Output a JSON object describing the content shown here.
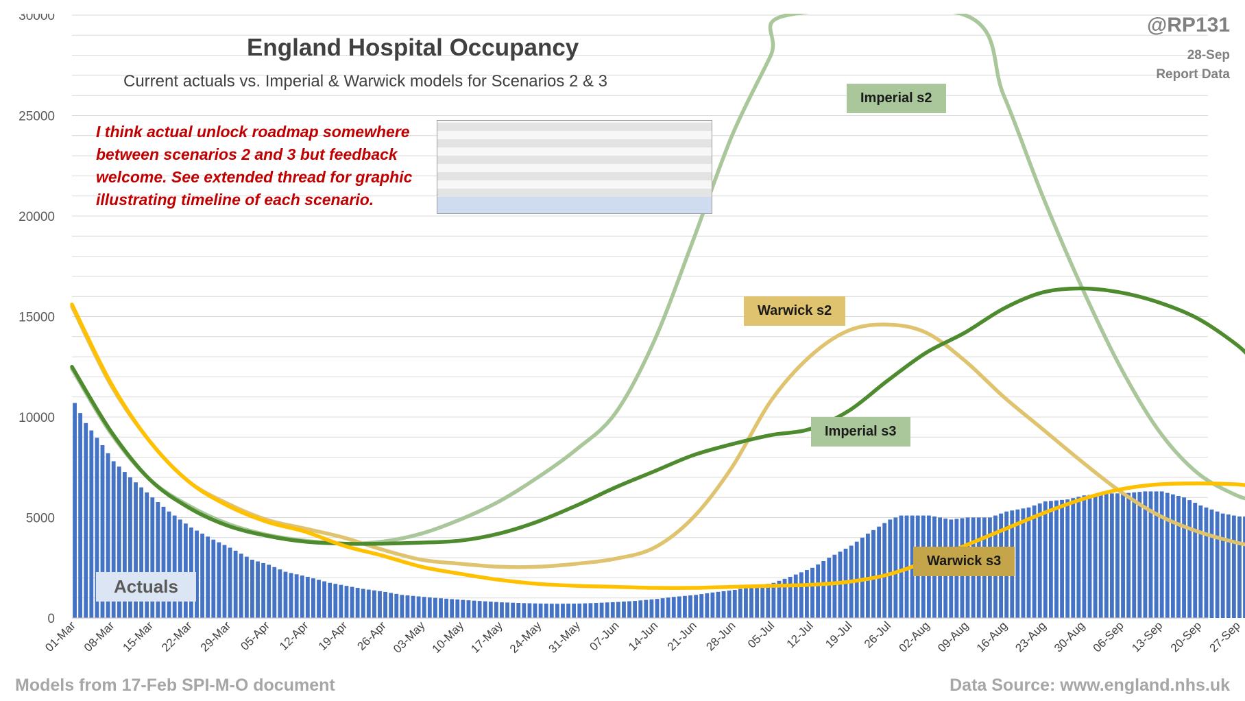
{
  "header": {
    "title": "England Hospital Occupancy",
    "subtitle": "Current actuals vs. Imperial & Warwick models for Scenarios 2 & 3",
    "handle": "@RP131",
    "report_date": "28-Sep",
    "report_data": "Report Data"
  },
  "annotation": "I think actual unlock roadmap somewhere between scenarios 2 and 3 but feedback welcome. See extended thread for graphic illustrating timeline of each scenario.",
  "footer": {
    "left": "Models from 17-Feb SPI-M-O document",
    "right": "Data Source: www.england.nhs.uk"
  },
  "colors": {
    "actuals": "#4472c4",
    "imperial_s2": "#a9c79a",
    "imperial_s3": "#4e8a2e",
    "warwick_s2": "#dfc36f",
    "warwick_s3": "#ffc000",
    "grid": "#d9d9d9"
  },
  "labels": {
    "imperial_s2": "Imperial s2",
    "imperial_s3": "Imperial s3",
    "warwick_s2": "Warwick s2",
    "warwick_s3": "Warwick s3",
    "actuals": "Actuals"
  },
  "chart_data": {
    "type": "bar+line",
    "title": "England Hospital Occupancy",
    "subtitle": "Current actuals vs. Imperial & Warwick models for Scenarios 2 & 3",
    "ylim": [
      0,
      30000
    ],
    "y_ticks": [
      0,
      5000,
      10000,
      15000,
      20000,
      25000,
      30000
    ],
    "x_start": "01-Mar",
    "x_ticks": [
      "01-Mar",
      "08-Mar",
      "15-Mar",
      "22-Mar",
      "29-Mar",
      "05-Apr",
      "12-Apr",
      "19-Apr",
      "26-Apr",
      "03-May",
      "10-May",
      "17-May",
      "24-May",
      "31-May",
      "07-Jun",
      "14-Jun",
      "21-Jun",
      "28-Jun",
      "05-Jul",
      "12-Jul",
      "19-Jul",
      "26-Jul",
      "02-Aug",
      "09-Aug",
      "16-Aug",
      "23-Aug",
      "30-Aug",
      "06-Sep",
      "13-Sep",
      "20-Sep",
      "27-Sep"
    ],
    "grid": true,
    "bars": {
      "name": "Actuals",
      "anchors": [
        [
          "01-Mar",
          10700
        ],
        [
          "03-Mar",
          9700
        ],
        [
          "06-Mar",
          8600
        ],
        [
          "08-Mar",
          7800
        ],
        [
          "11-Mar",
          7000
        ],
        [
          "15-Mar",
          6000
        ],
        [
          "18-Mar",
          5300
        ],
        [
          "22-Mar",
          4500
        ],
        [
          "26-Mar",
          3900
        ],
        [
          "29-Mar",
          3500
        ],
        [
          "02-Apr",
          2900
        ],
        [
          "05-Apr",
          2650
        ],
        [
          "08-Apr",
          2300
        ],
        [
          "12-Apr",
          2050
        ],
        [
          "16-Apr",
          1750
        ],
        [
          "19-Apr",
          1600
        ],
        [
          "22-Apr",
          1450
        ],
        [
          "26-Apr",
          1300
        ],
        [
          "29-Apr",
          1150
        ],
        [
          "03-May",
          1050
        ],
        [
          "06-May",
          980
        ],
        [
          "10-May",
          900
        ],
        [
          "14-May",
          830
        ],
        [
          "17-May",
          780
        ],
        [
          "21-May",
          740
        ],
        [
          "24-May",
          720
        ],
        [
          "27-May",
          710
        ],
        [
          "31-May",
          720
        ],
        [
          "03-Jun",
          750
        ],
        [
          "07-Jun",
          800
        ],
        [
          "10-Jun",
          850
        ],
        [
          "14-Jun",
          950
        ],
        [
          "17-Jun",
          1050
        ],
        [
          "21-Jun",
          1150
        ],
        [
          "24-Jun",
          1270
        ],
        [
          "28-Jun",
          1400
        ],
        [
          "01-Jul",
          1550
        ],
        [
          "05-Jul",
          1750
        ],
        [
          "08-Jul",
          2050
        ],
        [
          "12-Jul",
          2500
        ],
        [
          "15-Jul",
          3000
        ],
        [
          "19-Jul",
          3600
        ],
        [
          "22-Jul",
          4200
        ],
        [
          "26-Jul",
          4900
        ],
        [
          "28-Jul",
          5100
        ],
        [
          "02-Aug",
          5100
        ],
        [
          "06-Aug",
          4900
        ],
        [
          "09-Aug",
          5000
        ],
        [
          "13-Aug",
          5000
        ],
        [
          "16-Aug",
          5300
        ],
        [
          "20-Aug",
          5500
        ],
        [
          "23-Aug",
          5800
        ],
        [
          "27-Aug",
          5900
        ],
        [
          "30-Aug",
          6100
        ],
        [
          "03-Sep",
          6200
        ],
        [
          "06-Sep",
          6200
        ],
        [
          "10-Sep",
          6300
        ],
        [
          "13-Sep",
          6300
        ],
        [
          "17-Sep",
          6000
        ],
        [
          "20-Sep",
          5600
        ],
        [
          "24-Sep",
          5200
        ],
        [
          "27-Sep",
          5050
        ],
        [
          "28-Sep",
          5050
        ]
      ]
    },
    "series": [
      {
        "name": "Imperial s2",
        "points": [
          [
            "01-Mar",
            12400
          ],
          [
            "08-Mar",
            9200
          ],
          [
            "15-Mar",
            6900
          ],
          [
            "22-Mar",
            5600
          ],
          [
            "29-Mar",
            4700
          ],
          [
            "05-Apr",
            4150
          ],
          [
            "12-Apr",
            3850
          ],
          [
            "19-Apr",
            3700
          ],
          [
            "26-Apr",
            3800
          ],
          [
            "03-May",
            4200
          ],
          [
            "10-May",
            4900
          ],
          [
            "17-May",
            5800
          ],
          [
            "24-May",
            7000
          ],
          [
            "31-May",
            8400
          ],
          [
            "07-Jun",
            10200
          ],
          [
            "14-Jun",
            13800
          ],
          [
            "21-Jun",
            18800
          ],
          [
            "28-Jun",
            24000
          ],
          [
            "05-Jul",
            28000
          ],
          [
            "08-Jul",
            30000
          ],
          [
            "09-Aug",
            30000
          ],
          [
            "16-Aug",
            26000
          ],
          [
            "23-Aug",
            21000
          ],
          [
            "30-Aug",
            16500
          ],
          [
            "06-Sep",
            12500
          ],
          [
            "13-Sep",
            9300
          ],
          [
            "20-Sep",
            7200
          ],
          [
            "27-Sep",
            6100
          ],
          [
            "30-Sep",
            5900
          ]
        ]
      },
      {
        "name": "Imperial s3",
        "points": [
          [
            "01-Mar",
            12500
          ],
          [
            "08-Mar",
            9300
          ],
          [
            "15-Mar",
            6900
          ],
          [
            "22-Mar",
            5500
          ],
          [
            "29-Mar",
            4600
          ],
          [
            "05-Apr",
            4100
          ],
          [
            "12-Apr",
            3800
          ],
          [
            "19-Apr",
            3700
          ],
          [
            "26-Apr",
            3700
          ],
          [
            "03-May",
            3750
          ],
          [
            "10-May",
            3850
          ],
          [
            "17-May",
            4200
          ],
          [
            "24-May",
            4800
          ],
          [
            "31-May",
            5600
          ],
          [
            "07-Jun",
            6500
          ],
          [
            "14-Jun",
            7300
          ],
          [
            "21-Jun",
            8100
          ],
          [
            "28-Jun",
            8650
          ],
          [
            "05-Jul",
            9100
          ],
          [
            "12-Jul",
            9400
          ],
          [
            "19-Jul",
            10300
          ],
          [
            "26-Jul",
            11800
          ],
          [
            "02-Aug",
            13200
          ],
          [
            "09-Aug",
            14200
          ],
          [
            "16-Aug",
            15400
          ],
          [
            "23-Aug",
            16200
          ],
          [
            "30-Aug",
            16400
          ],
          [
            "06-Sep",
            16200
          ],
          [
            "13-Sep",
            15700
          ],
          [
            "20-Sep",
            14900
          ],
          [
            "27-Sep",
            13600
          ],
          [
            "30-Sep",
            12800
          ]
        ]
      },
      {
        "name": "Warwick s2",
        "points": [
          [
            "01-Mar",
            15500
          ],
          [
            "08-Mar",
            11600
          ],
          [
            "15-Mar",
            8800
          ],
          [
            "22-Mar",
            6800
          ],
          [
            "29-Mar",
            5700
          ],
          [
            "05-Apr",
            4900
          ],
          [
            "12-Apr",
            4450
          ],
          [
            "19-Apr",
            4000
          ],
          [
            "26-Apr",
            3400
          ],
          [
            "03-May",
            2900
          ],
          [
            "10-May",
            2700
          ],
          [
            "17-May",
            2550
          ],
          [
            "24-May",
            2550
          ],
          [
            "31-May",
            2700
          ],
          [
            "07-Jun",
            2950
          ],
          [
            "14-Jun",
            3500
          ],
          [
            "21-Jun",
            5000
          ],
          [
            "28-Jun",
            7500
          ],
          [
            "05-Jul",
            10800
          ],
          [
            "12-Jul",
            13000
          ],
          [
            "19-Jul",
            14300
          ],
          [
            "26-Jul",
            14600
          ],
          [
            "02-Aug",
            14200
          ],
          [
            "09-Aug",
            12800
          ],
          [
            "16-Aug",
            11000
          ],
          [
            "23-Aug",
            9400
          ],
          [
            "30-Aug",
            7800
          ],
          [
            "06-Sep",
            6300
          ],
          [
            "13-Sep",
            5100
          ],
          [
            "20-Sep",
            4300
          ],
          [
            "27-Sep",
            3750
          ],
          [
            "30-Sep",
            3600
          ]
        ]
      },
      {
        "name": "Warwick s3",
        "points": [
          [
            "01-Mar",
            15600
          ],
          [
            "08-Mar",
            11700
          ],
          [
            "15-Mar",
            8800
          ],
          [
            "22-Mar",
            6800
          ],
          [
            "29-Mar",
            5600
          ],
          [
            "05-Apr",
            4800
          ],
          [
            "12-Apr",
            4300
          ],
          [
            "19-Apr",
            3600
          ],
          [
            "26-Apr",
            3100
          ],
          [
            "03-May",
            2550
          ],
          [
            "10-May",
            2200
          ],
          [
            "17-May",
            1900
          ],
          [
            "24-May",
            1700
          ],
          [
            "31-May",
            1600
          ],
          [
            "07-Jun",
            1550
          ],
          [
            "14-Jun",
            1500
          ],
          [
            "21-Jun",
            1500
          ],
          [
            "28-Jun",
            1550
          ],
          [
            "05-Jul",
            1600
          ],
          [
            "12-Jul",
            1650
          ],
          [
            "19-Jul",
            1800
          ],
          [
            "26-Jul",
            2150
          ],
          [
            "02-Aug",
            2800
          ],
          [
            "09-Aug",
            3600
          ],
          [
            "16-Aug",
            4400
          ],
          [
            "23-Aug",
            5200
          ],
          [
            "30-Aug",
            5900
          ],
          [
            "06-Sep",
            6400
          ],
          [
            "13-Sep",
            6650
          ],
          [
            "20-Sep",
            6700
          ],
          [
            "27-Sep",
            6650
          ],
          [
            "30-Sep",
            6550
          ]
        ]
      }
    ]
  }
}
